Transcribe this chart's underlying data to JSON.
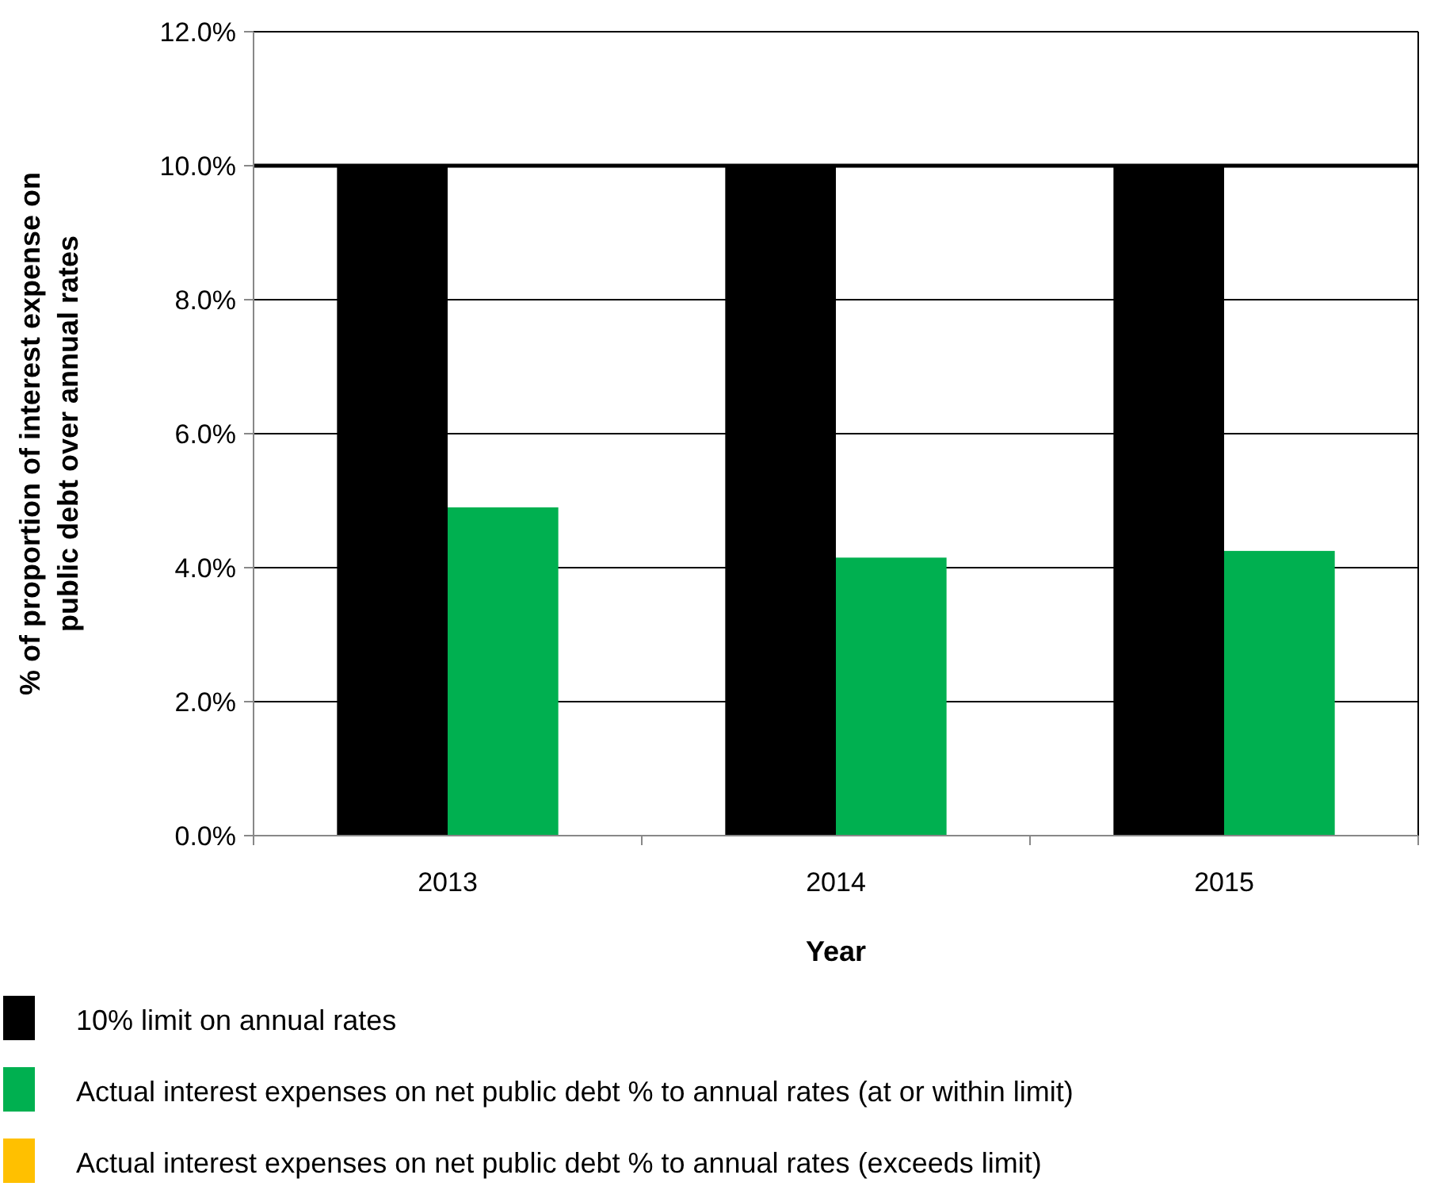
{
  "chart_data": {
    "type": "bar",
    "xlabel": "Year",
    "ylabel": "% of proportion of interest expense on public debt over annual rates",
    "categories": [
      "2013",
      "2014",
      "2015"
    ],
    "series": [
      {
        "name": "10% limit on annual rates",
        "color": "#000000",
        "values": [
          10,
          10,
          10
        ]
      },
      {
        "name": "Actual interest expenses on net public debt % to annual rates (at or within limit)",
        "color": "#00b050",
        "values": [
          4.9,
          4.15,
          4.25
        ]
      },
      {
        "name": "Actual interest expenses on net public debt % to annual rates (exceeds limit)",
        "color": "#ffc000",
        "values": [
          null,
          null,
          null
        ]
      }
    ],
    "ylim": [
      0,
      12
    ],
    "yticks": [
      {
        "value": 0,
        "label": "0.0%"
      },
      {
        "value": 2,
        "label": "2.0%"
      },
      {
        "value": 4,
        "label": "4.0%"
      },
      {
        "value": 6,
        "label": "6.0%"
      },
      {
        "value": 8,
        "label": "8.0%"
      },
      {
        "value": 10,
        "label": "10.0%"
      },
      {
        "value": 12,
        "label": "12.0%"
      }
    ],
    "ref_lines": [
      {
        "axis": "y",
        "value": 10,
        "color": "#000000"
      }
    ],
    "grid": "y",
    "legend": "bottom"
  }
}
